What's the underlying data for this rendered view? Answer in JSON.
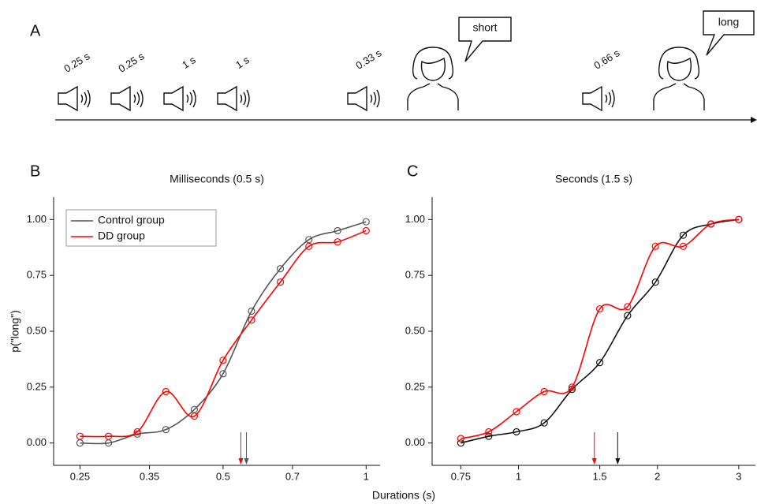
{
  "panel_labels": [
    "A",
    "B",
    "C"
  ],
  "timeline": {
    "stimuli": [
      "0.25 s",
      "0.25 s",
      "1 s",
      "1 s",
      "0.33 s",
      "0.66 s"
    ],
    "responses": [
      "short",
      "long"
    ]
  },
  "xlabel": "Durations (s)",
  "chart_data": [
    {
      "type": "scatter",
      "title": "Milliseconds (0.5 s)",
      "ylabel": "p(\"long\")",
      "x": [
        0.25,
        0.287,
        0.33,
        0.379,
        0.435,
        0.5,
        0.574,
        0.66,
        0.758,
        0.871,
        1
      ],
      "series": [
        {
          "name": "Control group",
          "color": "#555555",
          "values": [
            0.0,
            0.0,
            0.04,
            0.06,
            0.15,
            0.31,
            0.59,
            0.78,
            0.91,
            0.95,
            0.99
          ],
          "pse": 0.56
        },
        {
          "name": "DD group",
          "color": "#ff0000",
          "values": [
            0.03,
            0.03,
            0.05,
            0.23,
            0.12,
            0.37,
            0.55,
            0.72,
            0.88,
            0.9,
            0.95
          ],
          "pse": 0.545
        }
      ],
      "xlog": true,
      "xlim": [
        0.22,
        1.07
      ],
      "xticks": [
        0.25,
        0.35,
        0.5,
        0.7,
        1
      ],
      "ylim": [
        -0.1,
        1.1
      ],
      "yticks": [
        {
          "value": 0,
          "label": "0.00"
        },
        {
          "value": 0.25,
          "label": "0.25"
        },
        {
          "value": 0.5,
          "label": "0.50"
        },
        {
          "value": 0.75,
          "label": "0.75"
        },
        {
          "value": 1,
          "label": "1.00"
        }
      ],
      "legend": "top-left"
    },
    {
      "type": "scatter",
      "title": "Seconds (1.5 s)",
      "x": [
        0.75,
        0.862,
        0.99,
        1.137,
        1.306,
        1.5,
        1.723,
        1.98,
        2.274,
        2.612,
        3
      ],
      "series": [
        {
          "name": "Control group",
          "color": "#111111",
          "values": [
            0.0,
            0.03,
            0.05,
            0.09,
            0.24,
            0.36,
            0.57,
            0.72,
            0.93,
            0.98,
            1.0
          ],
          "pse": 1.64
        },
        {
          "name": "DD group",
          "color": "#ff0000",
          "values": [
            0.02,
            0.05,
            0.14,
            0.23,
            0.25,
            0.6,
            0.61,
            0.88,
            0.88,
            0.98,
            1.0
          ],
          "pse": 1.46
        }
      ],
      "xlog": true,
      "xlim": [
        0.65,
        3.26
      ],
      "xticks": [
        0.75,
        1,
        1.5,
        2,
        3
      ],
      "ylim": [
        -0.1,
        1.1
      ],
      "yticks": [
        {
          "value": 0,
          "label": "0.00"
        },
        {
          "value": 0.25,
          "label": "0.25"
        },
        {
          "value": 0.5,
          "label": "0.50"
        },
        {
          "value": 0.75,
          "label": "0.75"
        },
        {
          "value": 1,
          "label": "1.00"
        }
      ],
      "legend": "none"
    }
  ]
}
